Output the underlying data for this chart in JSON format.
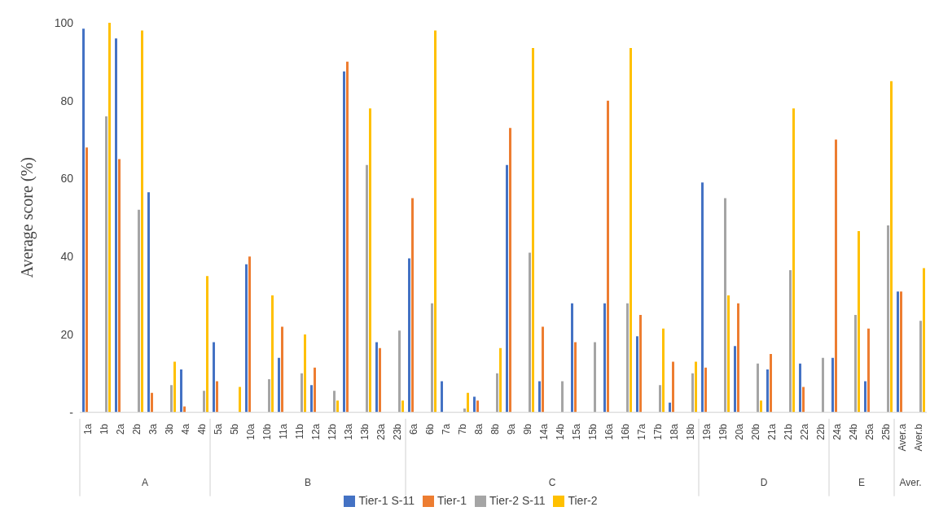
{
  "chart_data": {
    "type": "bar",
    "ylabel": "Average score (%)",
    "categories": [
      "1a",
      "1b",
      "2a",
      "2b",
      "3a",
      "3b",
      "4a",
      "4b",
      "5a",
      "5b",
      "10a",
      "10b",
      "11a",
      "11b",
      "12a",
      "12b",
      "13a",
      "13b",
      "23a",
      "23b",
      "6a",
      "6b",
      "7a",
      "7b",
      "8a",
      "8b",
      "9a",
      "9b",
      "14a",
      "14b",
      "15a",
      "15b",
      "16a",
      "16b",
      "17a",
      "17b",
      "18a",
      "18b",
      "19a",
      "19b",
      "20a",
      "20b",
      "21a",
      "21b",
      "22a",
      "22b",
      "24a",
      "24b",
      "25a",
      "25b",
      "Aver.a",
      "Aver.b"
    ],
    "series": [
      {
        "name": "Tier-1 S-11",
        "color": "#4472c4",
        "values": [
          98.5,
          null,
          96,
          null,
          56.5,
          null,
          11,
          null,
          18,
          null,
          38,
          null,
          14,
          null,
          7,
          null,
          87.5,
          null,
          18,
          null,
          39.5,
          null,
          8,
          null,
          4,
          null,
          63.5,
          null,
          8,
          null,
          28,
          null,
          28,
          null,
          19.5,
          null,
          2.5,
          null,
          59,
          null,
          17,
          null,
          11,
          null,
          12.5,
          null,
          14,
          null,
          8,
          null,
          31,
          null
        ]
      },
      {
        "name": "Tier-1",
        "color": "#ed7d31",
        "values": [
          68,
          null,
          65,
          null,
          5,
          null,
          1.5,
          null,
          8,
          null,
          40,
          null,
          22,
          null,
          11.5,
          null,
          90,
          null,
          16.5,
          null,
          55,
          null,
          null,
          null,
          3,
          null,
          73,
          null,
          22,
          null,
          18,
          null,
          80,
          null,
          25,
          null,
          13,
          null,
          11.5,
          null,
          28,
          null,
          15,
          null,
          6.5,
          null,
          70,
          null,
          21.5,
          null,
          31,
          null
        ]
      },
      {
        "name": "Tier-2 S-11",
        "color": "#a5a5a5",
        "values": [
          null,
          76,
          null,
          52,
          null,
          7,
          null,
          5.5,
          null,
          null,
          null,
          8.5,
          null,
          10,
          null,
          5.5,
          null,
          63.5,
          null,
          21,
          null,
          28,
          null,
          1,
          null,
          10,
          null,
          41,
          null,
          8,
          null,
          18,
          null,
          28,
          null,
          7,
          null,
          10,
          null,
          55,
          null,
          12.5,
          null,
          36.5,
          null,
          14,
          null,
          25,
          null,
          48,
          null,
          23.5
        ]
      },
      {
        "name": "Tier-2",
        "color": "#ffc000",
        "values": [
          null,
          100,
          null,
          98,
          null,
          13,
          null,
          35,
          null,
          6.5,
          null,
          30,
          null,
          20,
          null,
          3,
          null,
          78,
          null,
          3,
          null,
          98,
          null,
          5,
          null,
          16.5,
          null,
          93.5,
          null,
          null,
          null,
          null,
          null,
          93.5,
          null,
          21.5,
          null,
          13,
          null,
          30,
          null,
          3,
          null,
          78,
          null,
          null,
          null,
          46.5,
          null,
          85,
          null,
          37
        ]
      }
    ],
    "ylim": [
      0,
      100
    ],
    "yticks": [
      {
        "value": 0,
        "label": "-"
      },
      20,
      40,
      60,
      80,
      100
    ],
    "grid": false,
    "legend": "bottom",
    "annotations": [
      "A",
      "B",
      "C",
      "D",
      "E",
      "Aver."
    ]
  }
}
